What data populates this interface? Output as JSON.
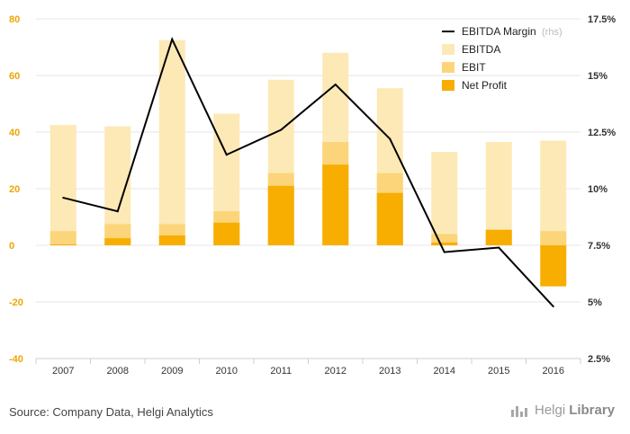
{
  "chart_data": {
    "type": "bar",
    "categories": [
      "2007",
      "2008",
      "2009",
      "2010",
      "2011",
      "2012",
      "2013",
      "2014",
      "2015",
      "2016"
    ],
    "series": [
      {
        "name": "EBITDA",
        "kind": "bar",
        "color": "#fde9b6",
        "values": [
          42.5,
          42,
          72.5,
          46.5,
          58.5,
          68,
          55.5,
          33,
          36.5,
          37
        ]
      },
      {
        "name": "EBIT",
        "kind": "bar",
        "color": "#fcd57a",
        "values": [
          5,
          7.5,
          7.5,
          12,
          25.5,
          36.5,
          25.5,
          4,
          5,
          5
        ]
      },
      {
        "name": "Net Profit",
        "kind": "bar",
        "color": "#f7ae00",
        "values": [
          0.3,
          2.5,
          3.5,
          8,
          21,
          28.5,
          18.5,
          1,
          5.5,
          -14.5
        ]
      },
      {
        "name": "EBITDA Margin",
        "kind": "line",
        "axis": "right",
        "color": "#000000",
        "values": [
          9.6,
          9.0,
          16.6,
          11.5,
          12.6,
          14.6,
          12.2,
          7.2,
          7.4,
          4.8
        ]
      }
    ],
    "ylim": [
      -40,
      80
    ],
    "yticks": [
      -40,
      -20,
      0,
      20,
      40,
      60,
      80
    ],
    "y2lim": [
      2.5,
      17.5
    ],
    "y2ticks": [
      "2.5%",
      "5%",
      "7.5%",
      "10%",
      "12.5%",
      "15%",
      "17.5%"
    ],
    "y2tick_values": [
      2.5,
      5,
      7.5,
      10,
      12.5,
      15,
      17.5
    ],
    "legend_placement": "top-right",
    "legend_rhs_note": "(rhs)",
    "grid": true
  },
  "footer": {
    "source": "Source: Company Data, Helgi Analytics",
    "brand_first": "Helgi",
    "brand_second": "Library"
  }
}
